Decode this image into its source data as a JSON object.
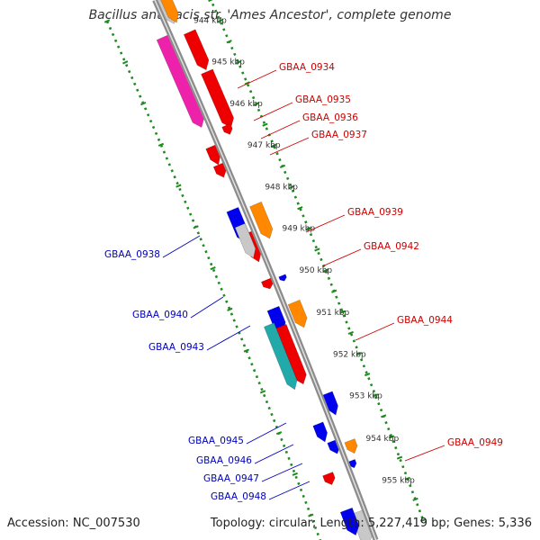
{
  "title": "Bacillus anthracis str. 'Ames Ancestor', complete genome",
  "footer": {
    "accession": "Accession: NC_007530",
    "summary": "Topology: circular; Length: 5,227,419 bp; Genes: 5,336"
  },
  "colors": {
    "backbone": "#8c8c8c",
    "tick": "#1f8a1f",
    "forward_label": "#cc0000",
    "reverse_label": "#0000bb",
    "cds": "#ee0000",
    "cds_rev": "#0000ee",
    "trna": "#ff8800",
    "pseudo": "#c8c8c8",
    "mobile": "#ee22aa",
    "rrna": "#22aaaa"
  },
  "scale": {
    "unit": "kbp",
    "labels": [
      "944 kbp",
      "945 kbp",
      "946 kbp",
      "947 kbp",
      "948 kbp",
      "949 kbp",
      "950 kbp",
      "951 kbp",
      "952 kbp",
      "953 kbp",
      "954 kbp",
      "955 kbp"
    ]
  },
  "features": [
    {
      "strand": "+",
      "type": "pseudo"
    },
    {
      "strand": "-",
      "type": "trna"
    },
    {
      "strand": "+",
      "type": "mobile"
    },
    {
      "strand": "-",
      "type": "cds"
    },
    {
      "strand": "-",
      "type": "cds"
    },
    {
      "strand": "-",
      "type": "cds"
    },
    {
      "strand": "+",
      "type": "cds"
    },
    {
      "strand": "+",
      "type": "cds"
    },
    {
      "strand": "-",
      "type": "trna"
    },
    {
      "strand": "-",
      "type": "cds_rev"
    },
    {
      "strand": "+",
      "type": "cds"
    },
    {
      "strand": "+",
      "type": "pseudo"
    },
    {
      "strand": "-",
      "type": "cds_rev"
    },
    {
      "strand": "+",
      "type": "cds"
    },
    {
      "strand": "-",
      "type": "trna"
    },
    {
      "strand": "-",
      "type": "cds_rev"
    },
    {
      "strand": "+",
      "type": "cds"
    },
    {
      "strand": "+",
      "type": "rrna"
    },
    {
      "strand": "-",
      "type": "cds_rev"
    },
    {
      "strand": "-",
      "type": "cds_rev"
    },
    {
      "strand": "-",
      "type": "cds_rev"
    },
    {
      "strand": "-",
      "type": "trna"
    },
    {
      "strand": "-",
      "type": "cds_rev"
    },
    {
      "strand": "+",
      "type": "cds"
    },
    {
      "strand": "-",
      "type": "pseudo"
    },
    {
      "strand": "-",
      "type": "cds_rev"
    }
  ],
  "gene_labels": [
    {
      "name": "GBAA_0934",
      "strand": "+"
    },
    {
      "name": "GBAA_0935",
      "strand": "+"
    },
    {
      "name": "GBAA_0936",
      "strand": "+"
    },
    {
      "name": "GBAA_0937",
      "strand": "+"
    },
    {
      "name": "GBAA_0939",
      "strand": "+"
    },
    {
      "name": "GBAA_0942",
      "strand": "+"
    },
    {
      "name": "GBAA_0944",
      "strand": "+"
    },
    {
      "name": "GBAA_0949",
      "strand": "+"
    },
    {
      "name": "GBAA_0938",
      "strand": "-"
    },
    {
      "name": "GBAA_0940",
      "strand": "-"
    },
    {
      "name": "GBAA_0943",
      "strand": "-"
    },
    {
      "name": "GBAA_0945",
      "strand": "-"
    },
    {
      "name": "GBAA_0946",
      "strand": "-"
    },
    {
      "name": "GBAA_0947",
      "strand": "-"
    },
    {
      "name": "GBAA_0948",
      "strand": "-"
    }
  ]
}
